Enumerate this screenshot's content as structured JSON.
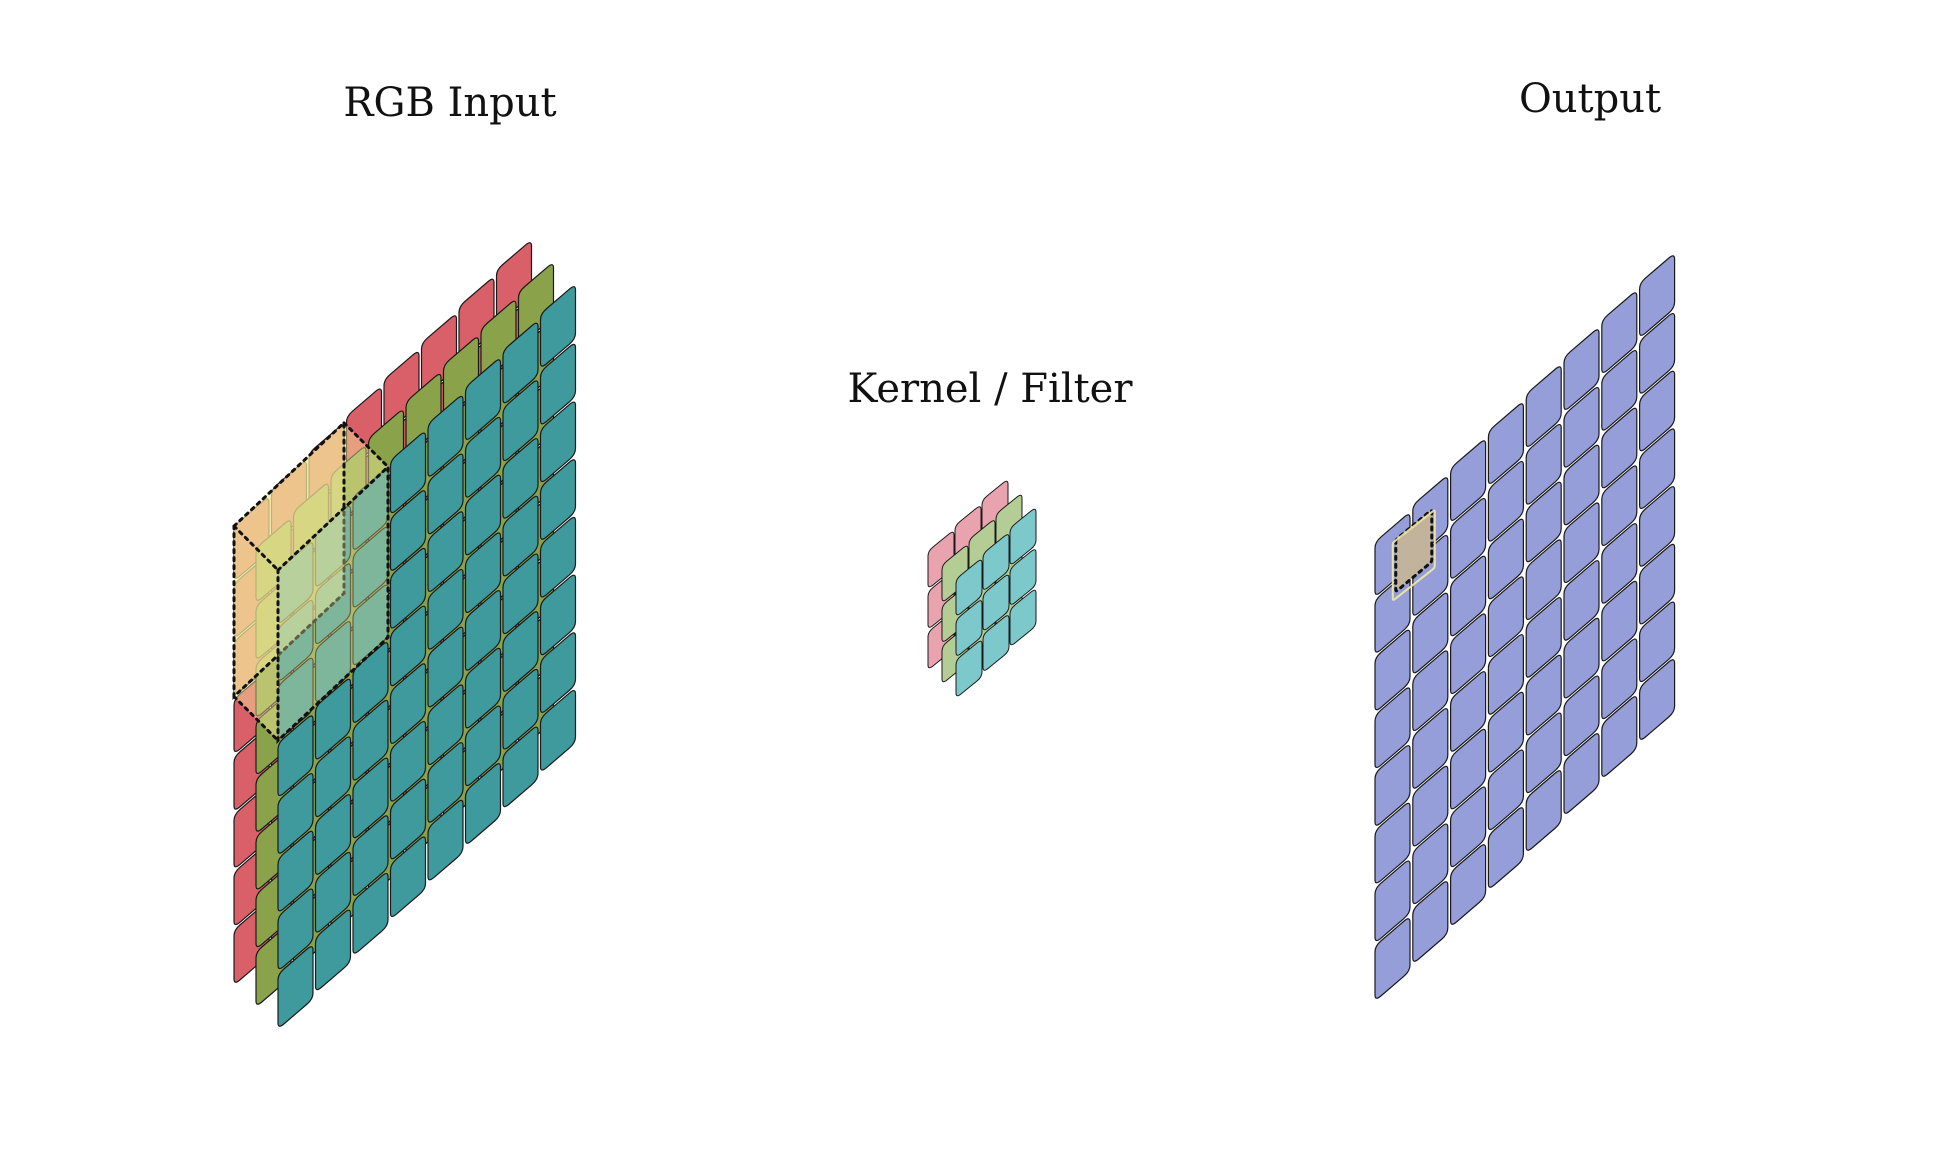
{
  "titles": {
    "input": "RGB Input",
    "kernel": "Kernel / Filter",
    "output": "Output"
  },
  "input": {
    "grid_size": 8,
    "channels": [
      {
        "name": "red-channel",
        "color": "#d95f69"
      },
      {
        "name": "green-channel",
        "color": "#8aa24a"
      },
      {
        "name": "blue-channel",
        "color": "#3e9a9c"
      }
    ],
    "receptive_field": {
      "rows": 3,
      "cols": 3,
      "highlight": "#f3ea9a"
    }
  },
  "kernel": {
    "grid_size": 3,
    "channels": [
      {
        "name": "red-kernel",
        "color": "#e9a3ae"
      },
      {
        "name": "green-kernel",
        "color": "#b4cd94"
      },
      {
        "name": "blue-kernel",
        "color": "#7cc8ca"
      }
    ]
  },
  "output": {
    "grid_size": 8,
    "color": "#959ed8",
    "highlight": "#c2b49c"
  }
}
